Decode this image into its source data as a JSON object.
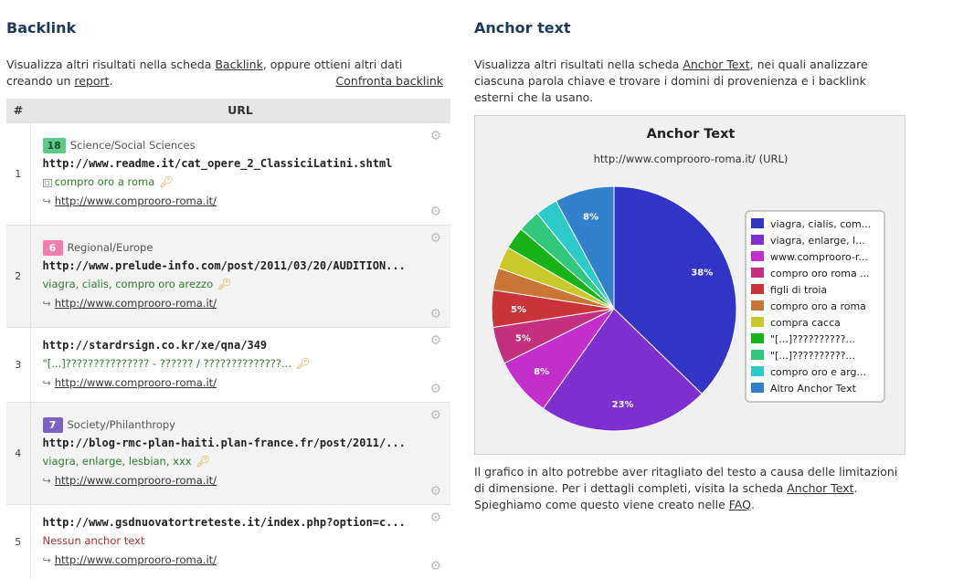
{
  "backlink": {
    "title": "Backlink",
    "intro_part1": "Visualizza altri risultati nella scheda ",
    "intro_link1": "Backlink",
    "intro_part2": ", oppure ottieni altri dati creando un ",
    "intro_link2": "report",
    "intro_part3": ".",
    "compare_link": "Confronta backlink",
    "table": {
      "col_num": "#",
      "col_url": "URL",
      "rows": [
        {
          "index": "1",
          "badge": "18",
          "badge_color": "#5fc98a",
          "category": "Science/Social Sciences",
          "url": "http://www.readme.it/cat_opere_2_ClassiciLatini.shtml",
          "anchor": "compro oro a roma",
          "target": "http://www.comprooro-roma.it/"
        },
        {
          "index": "2",
          "badge": "6",
          "badge_color": "#f07fb0",
          "category": "Regional/Europe",
          "url": "http://www.prelude-info.com/post/2011/03/20/AUDITION...",
          "anchor": "viagra, cialis, compro oro arezzo",
          "target": "http://www.comprooro-roma.it/"
        },
        {
          "index": "3",
          "url": "http://stardrsign.co.kr/xe/qna/349",
          "anchor": "\"[...]??????????????? - ?????? / ??????????????...",
          "target": "http://www.comprooro-roma.it/"
        },
        {
          "index": "4",
          "badge": "7",
          "badge_color": "#7b62c4",
          "category": "Society/Philanthropy",
          "url": "http://blog-rmc-plan-haiti.plan-france.fr/post/2011/...",
          "anchor": "viagra, enlarge, lesbian, xxx",
          "target": "http://www.comprooro-roma.it/"
        },
        {
          "index": "5",
          "url": "http://www.gsdnuovatortreteste.it/index.php?option=c...",
          "anchor": "Nessun anchor text",
          "target": "http://www.comprooro-roma.it/"
        }
      ]
    }
  },
  "anchor_text": {
    "title": "Anchor text",
    "intro_part1": "Visualizza altri risultati nella scheda ",
    "intro_link": "Anchor Text",
    "intro_part2": ", nei quali analizzare ciascuna parola chiave e trovare i domini di provenienza e i backlink esterni che la usano.",
    "foot_part1": "Il grafico in alto potrebbe aver ritagliato del testo a causa delle limitazioni di dimensione. Per i dettagli completi, visita la scheda ",
    "foot_link1": "Anchor Text",
    "foot_part2": ". Spieghiamo come questo viene creato nelle ",
    "foot_link2": "FAQ",
    "foot_part3": "."
  },
  "chart_data": {
    "type": "pie",
    "title": "Anchor Text",
    "subtitle": "http://www.comprooro-roma.it/ (URL)",
    "legend_position": "right",
    "slices": [
      {
        "label": "viagra, cialis, com...",
        "value": 38,
        "color": "#3334c6"
      },
      {
        "label": "viagra, enlarge, l...",
        "value": 23,
        "color": "#7d2fcf"
      },
      {
        "label": "www.comprooro-r...",
        "value": 8,
        "color": "#c22fcb"
      },
      {
        "label": "compro oro roma ...",
        "value": 5,
        "color": "#c3317e"
      },
      {
        "label": "figli di troia",
        "value": 5,
        "color": "#c9343a"
      },
      {
        "label": "compro oro a roma",
        "value": 3,
        "color": "#c97535"
      },
      {
        "label": "compra cacca",
        "value": 3,
        "color": "#c9c92e"
      },
      {
        "label": "\"[...]??????????...",
        "value": 3,
        "color": "#19b219"
      },
      {
        "label": "\"[...]??????????...",
        "value": 3,
        "color": "#31c77c"
      },
      {
        "label": "compro oro e arg...",
        "value": 3,
        "color": "#2ecaca"
      },
      {
        "label": "Altro Anchor Text",
        "value": 8,
        "color": "#3380cc"
      }
    ],
    "value_labels": [
      "38%",
      "23%",
      "8%",
      "5%",
      "5%",
      "",
      "",
      "",
      "",
      "",
      "8%"
    ]
  }
}
